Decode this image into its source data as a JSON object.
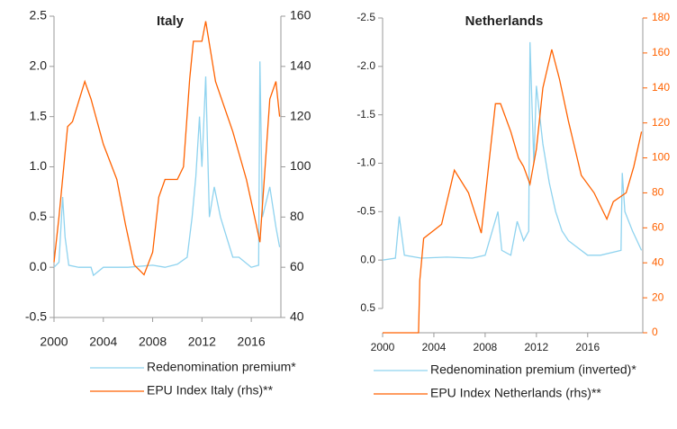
{
  "chart_data": [
    {
      "type": "line",
      "title": "Italy",
      "xlim": [
        2000,
        2018.4
      ],
      "xticks": [
        2000,
        2004,
        2008,
        2012,
        2016
      ],
      "ylim": [
        -0.5,
        2.5
      ],
      "yticks": [
        -0.5,
        {
          "value": 0,
          "label": "0.0"
        },
        0.5,
        {
          "value": 1,
          "label": "1.0"
        },
        1.5,
        {
          "value": 2,
          "label": "2.0"
        },
        2.5
      ],
      "y2lim": [
        40,
        160
      ],
      "y2ticks": [
        40,
        60,
        80,
        100,
        120,
        140,
        160
      ],
      "series": [
        {
          "name": "Redenomination premium*",
          "color": "#8fd3ef",
          "x": [
            2000,
            2000.4,
            2000.7,
            2000.9,
            2001.2,
            2002,
            2003,
            2003.2,
            2004,
            2006,
            2008,
            2009,
            2010,
            2010.8,
            2011.2,
            2011.5,
            2011.8,
            2012,
            2012.3,
            2012.6,
            2013,
            2013.5,
            2014,
            2014.5,
            2015,
            2016,
            2016.6,
            2016.7,
            2016.9,
            2017.5,
            2018,
            2018.3
          ],
          "values": [
            0.0,
            0.05,
            0.7,
            0.3,
            0.02,
            0.0,
            0.0,
            -0.08,
            0.0,
            0.0,
            0.02,
            0.0,
            0.03,
            0.1,
            0.5,
            0.9,
            1.5,
            1.0,
            1.9,
            0.5,
            0.8,
            0.5,
            0.3,
            0.1,
            0.1,
            0.0,
            0.02,
            2.05,
            0.5,
            0.8,
            0.4,
            0.2
          ]
        },
        {
          "name": "EPU Index Italy (rhs)**",
          "color": "#ff6200",
          "axis": "y2",
          "x": [
            2000,
            2000.4,
            2001.1,
            2001.5,
            2002.5,
            2003,
            2004,
            2005.1,
            2005.8,
            2006.5,
            2007.3,
            2008,
            2008.5,
            2009,
            2010,
            2010.5,
            2011,
            2011.3,
            2012,
            2012.3,
            2013.1,
            2014.5,
            2015.6,
            2016.4,
            2016.7,
            2017.5,
            2018,
            2018.3
          ],
          "values": [
            62,
            80,
            116,
            118,
            134,
            127,
            109,
            95,
            77,
            61,
            57,
            66,
            88,
            95,
            95,
            100,
            135,
            150,
            150,
            158,
            134,
            114,
            95,
            77,
            70,
            127,
            134,
            120
          ]
        }
      ]
    },
    {
      "type": "line",
      "title": "Netherlands",
      "xlim": [
        2000,
        2020.3
      ],
      "xticks": [
        2000,
        2004,
        2008,
        2012,
        2016
      ],
      "ylim": [
        0.5,
        -2.5
      ],
      "yticks": [
        0.5,
        {
          "value": 0,
          "label": "0.0"
        },
        -0.5,
        {
          "value": -1,
          "label": "-1.0"
        },
        -1.5,
        {
          "value": -2,
          "label": "-2.0"
        },
        -2.5
      ],
      "y2lim": [
        0,
        180
      ],
      "y2ticks": [
        0,
        20,
        40,
        60,
        80,
        100,
        120,
        140,
        160,
        180
      ],
      "series": [
        {
          "name": "Redenomination premium (inverted)*",
          "color": "#8fd3ef",
          "x": [
            2000,
            2001,
            2001.3,
            2001.7,
            2003,
            2005,
            2007,
            2008,
            2009,
            2009.3,
            2010,
            2010.5,
            2011,
            2011.4,
            2011.5,
            2011.8,
            2012,
            2012.5,
            2013,
            2013.5,
            2014,
            2014.5,
            2015,
            2016,
            2017,
            2018.6,
            2018.7,
            2018.9,
            2019.5,
            2020.2
          ],
          "values": [
            0.0,
            -0.02,
            -0.45,
            -0.05,
            -0.02,
            -0.03,
            -0.02,
            -0.05,
            -0.5,
            -0.1,
            -0.05,
            -0.4,
            -0.2,
            -0.3,
            -2.25,
            -1.0,
            -1.8,
            -1.2,
            -0.8,
            -0.5,
            -0.3,
            -0.2,
            -0.15,
            -0.05,
            -0.05,
            -0.1,
            -0.9,
            -0.5,
            -0.3,
            -0.1
          ]
        },
        {
          "name": "EPU Index Netherlands (rhs)**",
          "color": "#ff6200",
          "axis": "y2",
          "x": [
            2000,
            2002.8,
            2002.9,
            2003.2,
            2004.6,
            2005.6,
            2006.7,
            2007.7,
            2008.8,
            2009.2,
            2010,
            2010.6,
            2011,
            2011.5,
            2012,
            2012.5,
            2013.2,
            2013.8,
            2014.5,
            2015.5,
            2016.5,
            2017.5,
            2018,
            2019,
            2019.6,
            2020.2
          ],
          "values": [
            0,
            0,
            30,
            54,
            62,
            93,
            80,
            57,
            131,
            131,
            115,
            100,
            95,
            85,
            105,
            140,
            162,
            145,
            121,
            90,
            80,
            65,
            75,
            80,
            95,
            115
          ]
        }
      ]
    }
  ]
}
